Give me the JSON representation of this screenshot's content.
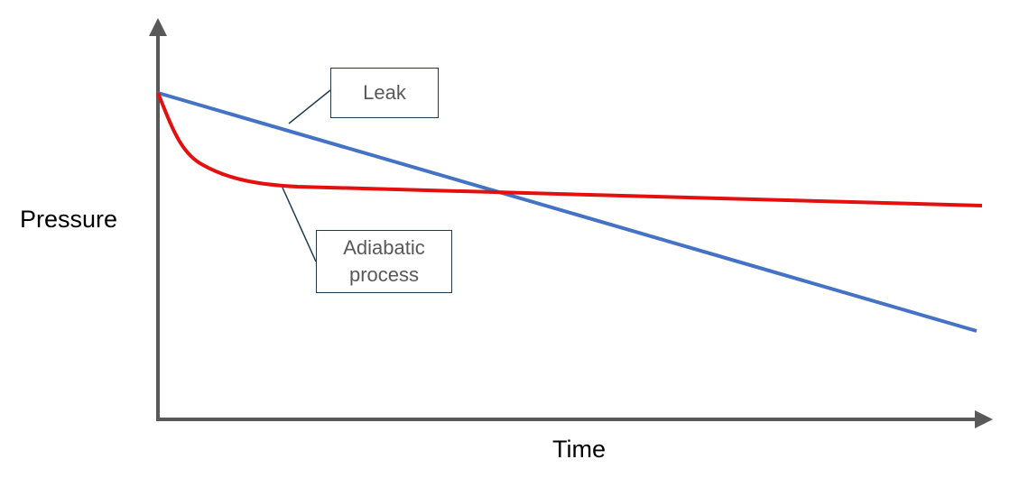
{
  "y_axis_label": "Pressure",
  "x_axis_label": "Time",
  "callouts": [
    {
      "label": "Leak"
    },
    {
      "label": "Adiabatic process"
    }
  ]
}
